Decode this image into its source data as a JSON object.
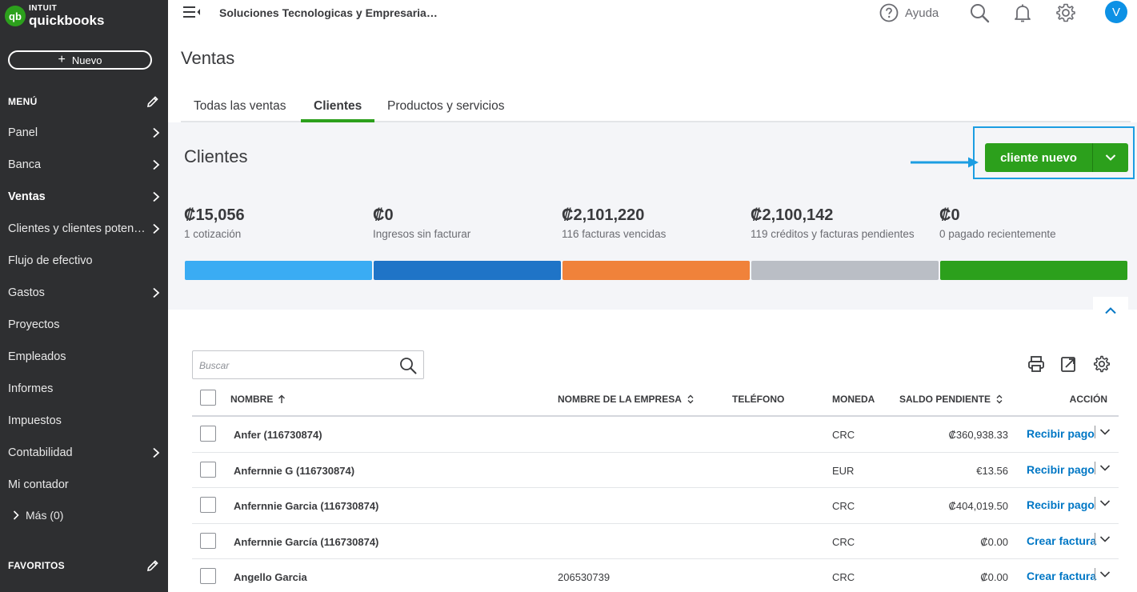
{
  "brand": {
    "intuit": "INTUIT",
    "name": "quickbooks",
    "logo_letters": "qb"
  },
  "sidebar": {
    "new_button": "Nuevo",
    "menu_title": "MENÚ",
    "items": [
      {
        "label": "Panel",
        "chevron": true
      },
      {
        "label": "Banca",
        "chevron": true
      },
      {
        "label": "Ventas",
        "chevron": true,
        "active": true
      },
      {
        "label": "Clientes y clientes poten…",
        "chevron": true
      },
      {
        "label": "Flujo de efectivo",
        "chevron": false
      },
      {
        "label": "Gastos",
        "chevron": true
      },
      {
        "label": "Proyectos",
        "chevron": false
      },
      {
        "label": "Empleados",
        "chevron": false
      },
      {
        "label": "Informes",
        "chevron": false
      },
      {
        "label": "Impuestos",
        "chevron": false
      },
      {
        "label": "Contabilidad",
        "chevron": true
      },
      {
        "label": "Mi contador",
        "chevron": false
      }
    ],
    "more": "Más (0)",
    "favorites_title": "FAVORITOS"
  },
  "topbar": {
    "company": "Soluciones Tecnologicas y Empresaria…",
    "help": "Ayuda",
    "avatar": "V"
  },
  "page": {
    "title": "Ventas",
    "tabs": [
      "Todas las ventas",
      "Clientes",
      "Productos y servicios"
    ],
    "active_tab": 1
  },
  "summary": {
    "title": "Clientes",
    "new_client_button": "cliente nuevo",
    "stats": [
      {
        "amount": "₡15,056",
        "desc": "1 cotización",
        "color": "#3aacf3"
      },
      {
        "amount": "₡0",
        "desc": "Ingresos sin facturar",
        "color": "#1f74c7"
      },
      {
        "amount": "₡2,101,220",
        "desc": "116 facturas vencidas",
        "color": "#f0823a"
      },
      {
        "amount": "₡2,100,142",
        "desc": "119 créditos y facturas pendientes",
        "color": "#babec5"
      },
      {
        "amount": "₡0",
        "desc": "0 pagado recientemente",
        "color": "#2ca01c"
      }
    ]
  },
  "search": {
    "placeholder": "Buscar"
  },
  "table": {
    "headers": {
      "name": "NOMBRE",
      "company": "NOMBRE DE LA EMPRESA",
      "phone": "TELÉFONO",
      "currency": "MONEDA",
      "balance": "SALDO PENDIENTE",
      "action": "ACCIÓN"
    },
    "rows": [
      {
        "name": "Anfer (116730874)",
        "company": "",
        "phone": "",
        "currency": "CRC",
        "balance": "₡360,938.33",
        "action": "Recibir pago"
      },
      {
        "name": "Anfernnie G (116730874)",
        "company": "",
        "phone": "",
        "currency": "EUR",
        "balance": "€13.56",
        "action": "Recibir pago"
      },
      {
        "name": "Anfernnie Garcia (116730874)",
        "company": "",
        "phone": "",
        "currency": "CRC",
        "balance": "₡404,019.50",
        "action": "Recibir pago"
      },
      {
        "name": "Anfernnie García (116730874)",
        "company": "",
        "phone": "",
        "currency": "CRC",
        "balance": "₡0.00",
        "action": "Crear factura"
      },
      {
        "name": "Angello Garcia",
        "company": "206530739",
        "phone": "",
        "currency": "CRC",
        "balance": "₡0.00",
        "action": "Crear factura"
      }
    ]
  }
}
